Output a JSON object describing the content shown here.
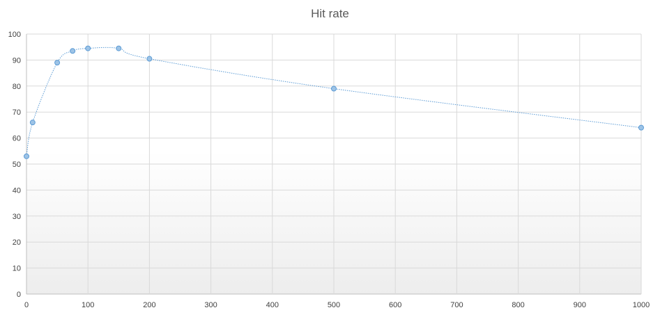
{
  "chart_data": {
    "type": "scatter",
    "title": "Hit rate",
    "xlabel": "",
    "ylabel": "",
    "xlim": [
      0,
      1000
    ],
    "ylim": [
      0,
      100
    ],
    "x_ticks": [
      0,
      100,
      200,
      300,
      400,
      500,
      600,
      700,
      800,
      900,
      1000
    ],
    "y_ticks": [
      0,
      10,
      20,
      30,
      40,
      50,
      60,
      70,
      80,
      90,
      100
    ],
    "grid": true,
    "legend": "none",
    "series": [
      {
        "points": [
          {
            "x": 0,
            "y": 53
          },
          {
            "x": 10,
            "y": 66
          },
          {
            "x": 50,
            "y": 89
          },
          {
            "x": 75,
            "y": 93.5
          },
          {
            "x": 100,
            "y": 94.5
          },
          {
            "x": 150,
            "y": 94.5
          },
          {
            "x": 200,
            "y": 90.5
          },
          {
            "x": 500,
            "y": 79
          },
          {
            "x": 1000,
            "y": 64
          }
        ],
        "marker_color": "#9dc3e6",
        "marker_edge_color": "#5b9bd5",
        "line_color": "#5b9bd5",
        "line_style": "dotted smooth"
      }
    ],
    "colors": {
      "grid": "#d9d9d9",
      "axis": "#bfbfbf",
      "title": "#595959",
      "tick_label": "#404040"
    }
  }
}
